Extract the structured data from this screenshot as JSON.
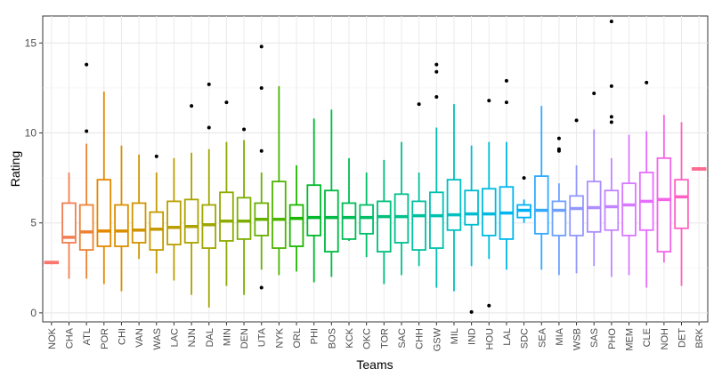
{
  "chart_data": {
    "type": "boxplot",
    "xlabel": "Teams",
    "ylabel": "Rating",
    "ylim": [
      -0.5,
      16.5
    ],
    "yticks": [
      0,
      5,
      10,
      15
    ],
    "ytick_labels": [
      "0",
      "5",
      "10",
      "15"
    ],
    "grid": true,
    "legend": "none",
    "categories": [
      "NOK",
      "CHA",
      "ATL",
      "POR",
      "CHI",
      "VAN",
      "WAS",
      "LAC",
      "NJN",
      "DAL",
      "MIN",
      "DEN",
      "UTA",
      "NYK",
      "ORL",
      "PHI",
      "BOS",
      "KCK",
      "OKC",
      "TOR",
      "SAC",
      "CHH",
      "GSW",
      "MIL",
      "IND",
      "HOU",
      "LAL",
      "SDC",
      "SEA",
      "MIA",
      "WSB",
      "SAS",
      "PHO",
      "MEM",
      "CLE",
      "NOH",
      "DET",
      "BRK"
    ],
    "colors": [
      "#F8766D",
      "#F27D52",
      "#EB8335",
      "#E38900",
      "#DA8F00",
      "#D09400",
      "#C59900",
      "#B99E00",
      "#ACA300",
      "#9EA700",
      "#8EAB00",
      "#7CAE00",
      "#67B100",
      "#4CB400",
      "#1CB600",
      "#00B82C",
      "#00BA42",
      "#00BC56",
      "#00BE68",
      "#00BF7A",
      "#00C08C",
      "#00C09D",
      "#00C0AF",
      "#00BFBF",
      "#00BDD0",
      "#00BAE0",
      "#00B6EE",
      "#00B1FA",
      "#33A9FF",
      "#6EA0FF",
      "#9297FF",
      "#AE8DFF",
      "#C584FF",
      "#D779FF",
      "#E76DFF",
      "#F464E8",
      "#FF61C3",
      "#FF6C91"
    ],
    "boxes": [
      {
        "min": 2.7,
        "q1": 2.75,
        "median": 2.8,
        "q3": 2.85,
        "max": 2.9,
        "outliers": []
      },
      {
        "min": 1.9,
        "q1": 3.9,
        "median": 4.2,
        "q3": 6.1,
        "max": 7.8,
        "outliers": []
      },
      {
        "min": 1.9,
        "q1": 3.5,
        "median": 4.5,
        "q3": 6.0,
        "max": 9.4,
        "outliers": [
          10.1,
          13.8
        ]
      },
      {
        "min": 1.6,
        "q1": 3.7,
        "median": 4.55,
        "q3": 7.4,
        "max": 12.3,
        "outliers": []
      },
      {
        "min": 1.2,
        "q1": 3.7,
        "median": 4.55,
        "q3": 6.0,
        "max": 9.3,
        "outliers": []
      },
      {
        "min": 3.0,
        "q1": 3.9,
        "median": 4.6,
        "q3": 6.1,
        "max": 8.8,
        "outliers": []
      },
      {
        "min": 2.2,
        "q1": 3.5,
        "median": 4.65,
        "q3": 5.6,
        "max": 7.8,
        "outliers": [
          8.7
        ]
      },
      {
        "min": 1.8,
        "q1": 3.8,
        "median": 4.75,
        "q3": 6.2,
        "max": 8.6,
        "outliers": []
      },
      {
        "min": 1.0,
        "q1": 3.9,
        "median": 4.8,
        "q3": 6.3,
        "max": 8.9,
        "outliers": [
          11.5
        ]
      },
      {
        "min": 0.3,
        "q1": 3.6,
        "median": 4.9,
        "q3": 6.0,
        "max": 9.1,
        "outliers": [
          10.3,
          12.7
        ]
      },
      {
        "min": 1.5,
        "q1": 4.0,
        "median": 5.1,
        "q3": 6.7,
        "max": 9.5,
        "outliers": [
          11.7
        ]
      },
      {
        "min": 1.0,
        "q1": 4.1,
        "median": 5.1,
        "q3": 6.4,
        "max": 9.6,
        "outliers": [
          10.2
        ]
      },
      {
        "min": 2.4,
        "q1": 4.3,
        "median": 5.2,
        "q3": 6.1,
        "max": 7.8,
        "outliers": [
          1.4,
          9.0,
          12.5,
          14.8
        ]
      },
      {
        "min": 2.1,
        "q1": 3.6,
        "median": 5.2,
        "q3": 7.3,
        "max": 12.6,
        "outliers": []
      },
      {
        "min": 2.3,
        "q1": 3.7,
        "median": 5.25,
        "q3": 6.0,
        "max": 8.2,
        "outliers": []
      },
      {
        "min": 1.7,
        "q1": 4.3,
        "median": 5.3,
        "q3": 7.1,
        "max": 10.8,
        "outliers": []
      },
      {
        "min": 2.0,
        "q1": 3.4,
        "median": 5.3,
        "q3": 6.8,
        "max": 11.3,
        "outliers": []
      },
      {
        "min": 4.0,
        "q1": 4.1,
        "median": 5.3,
        "q3": 6.1,
        "max": 8.6,
        "outliers": []
      },
      {
        "min": 3.1,
        "q1": 4.4,
        "median": 5.3,
        "q3": 6.0,
        "max": 7.8,
        "outliers": []
      },
      {
        "min": 1.6,
        "q1": 3.4,
        "median": 5.35,
        "q3": 6.2,
        "max": 8.5,
        "outliers": []
      },
      {
        "min": 2.1,
        "q1": 3.9,
        "median": 5.35,
        "q3": 6.6,
        "max": 9.5,
        "outliers": []
      },
      {
        "min": 2.6,
        "q1": 3.5,
        "median": 5.4,
        "q3": 6.2,
        "max": 7.8,
        "outliers": [
          11.6
        ]
      },
      {
        "min": 1.4,
        "q1": 3.6,
        "median": 5.4,
        "q3": 6.7,
        "max": 10.3,
        "outliers": [
          12.0,
          13.4,
          13.8
        ]
      },
      {
        "min": 1.2,
        "q1": 4.6,
        "median": 5.45,
        "q3": 7.4,
        "max": 11.6,
        "outliers": []
      },
      {
        "min": 2.6,
        "q1": 4.9,
        "median": 5.5,
        "q3": 6.8,
        "max": 9.3,
        "outliers": [
          0.05
        ]
      },
      {
        "min": 3.0,
        "q1": 4.3,
        "median": 5.5,
        "q3": 6.9,
        "max": 9.5,
        "outliers": [
          0.4,
          11.8
        ]
      },
      {
        "min": 2.4,
        "q1": 4.1,
        "median": 5.55,
        "q3": 7.0,
        "max": 9.5,
        "outliers": [
          11.7,
          12.9
        ]
      },
      {
        "min": 5.0,
        "q1": 5.3,
        "median": 5.7,
        "q3": 6.0,
        "max": 6.3,
        "outliers": [
          7.5
        ]
      },
      {
        "min": 2.4,
        "q1": 4.4,
        "median": 5.7,
        "q3": 7.6,
        "max": 11.5,
        "outliers": []
      },
      {
        "min": 2.1,
        "q1": 4.3,
        "median": 5.7,
        "q3": 6.2,
        "max": 7.2,
        "outliers": [
          9.0,
          9.1,
          9.7
        ]
      },
      {
        "min": 2.2,
        "q1": 4.3,
        "median": 5.8,
        "q3": 6.5,
        "max": 8.2,
        "outliers": [
          10.7
        ]
      },
      {
        "min": 2.6,
        "q1": 4.5,
        "median": 5.85,
        "q3": 7.3,
        "max": 10.2,
        "outliers": [
          12.2
        ]
      },
      {
        "min": 2.0,
        "q1": 4.6,
        "median": 5.9,
        "q3": 6.8,
        "max": 8.6,
        "outliers": [
          10.6,
          10.9,
          12.6,
          16.2
        ]
      },
      {
        "min": 2.1,
        "q1": 4.3,
        "median": 6.0,
        "q3": 7.2,
        "max": 9.9,
        "outliers": []
      },
      {
        "min": 1.4,
        "q1": 4.6,
        "median": 6.2,
        "q3": 7.8,
        "max": 10.1,
        "outliers": [
          12.8
        ]
      },
      {
        "min": 2.8,
        "q1": 3.4,
        "median": 6.3,
        "q3": 8.6,
        "max": 11.0,
        "outliers": []
      },
      {
        "min": 1.5,
        "q1": 4.7,
        "median": 6.45,
        "q3": 7.4,
        "max": 10.6,
        "outliers": []
      },
      {
        "min": 7.9,
        "q1": 7.95,
        "median": 8.0,
        "q3": 8.05,
        "max": 8.1,
        "outliers": []
      }
    ]
  }
}
